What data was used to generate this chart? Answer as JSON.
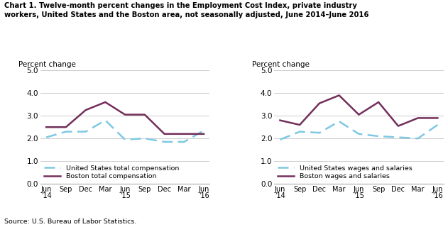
{
  "title_line1": "Chart 1. Twelve-month percent changes in the Employment Cost Index, private industry",
  "title_line2": "workers, United States and the Boston area, not seasonally adjusted, June 2014–June 2016",
  "source": "Source: U.S. Bureau of Labor Statistics.",
  "ylabel": "Percent change",
  "x_labels": [
    "Jun\n'14",
    "Sep",
    "Dec",
    "Mar",
    "Jun\n'15",
    "Sep",
    "Dec",
    "Mar",
    "Jun\n'16"
  ],
  "ylim": [
    0.0,
    5.0
  ],
  "yticks": [
    0.0,
    1.0,
    2.0,
    3.0,
    4.0,
    5.0
  ],
  "chart1": {
    "us_total_comp": [
      2.05,
      2.3,
      2.3,
      2.8,
      1.95,
      2.0,
      1.85,
      1.85,
      2.35
    ],
    "boston_total_comp": [
      2.5,
      2.5,
      3.25,
      3.6,
      3.05,
      3.05,
      2.2,
      2.2,
      2.2
    ],
    "legend": [
      "United States total compensation",
      "Boston total compensation"
    ]
  },
  "chart2": {
    "us_wages_salaries": [
      1.95,
      2.3,
      2.25,
      2.75,
      2.2,
      2.1,
      2.05,
      2.0,
      2.6
    ],
    "boston_wages_salaries": [
      2.8,
      2.6,
      3.55,
      3.9,
      3.05,
      3.6,
      2.55,
      2.9,
      2.9
    ],
    "legend": [
      "United States wages and salaries",
      "Boston wages and salaries"
    ]
  },
  "us_color": "#7ec8e3",
  "boston_color": "#722F5A",
  "linewidth": 1.8
}
